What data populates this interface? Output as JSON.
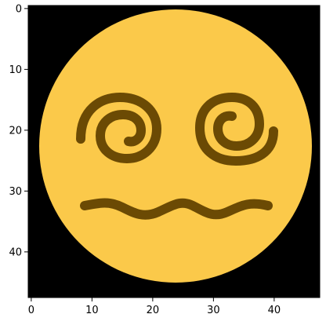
{
  "image": {
    "subject": "dizzy-face-emoji",
    "colors": {
      "background": "#000000",
      "face": "#FBC94A",
      "face_edge": "#D9A233",
      "feature": "#6B4A04"
    }
  },
  "axes": {
    "x_ticks": [
      "0",
      "10",
      "20",
      "30",
      "40"
    ],
    "y_ticks": [
      "0",
      "10",
      "20",
      "30",
      "40"
    ]
  }
}
